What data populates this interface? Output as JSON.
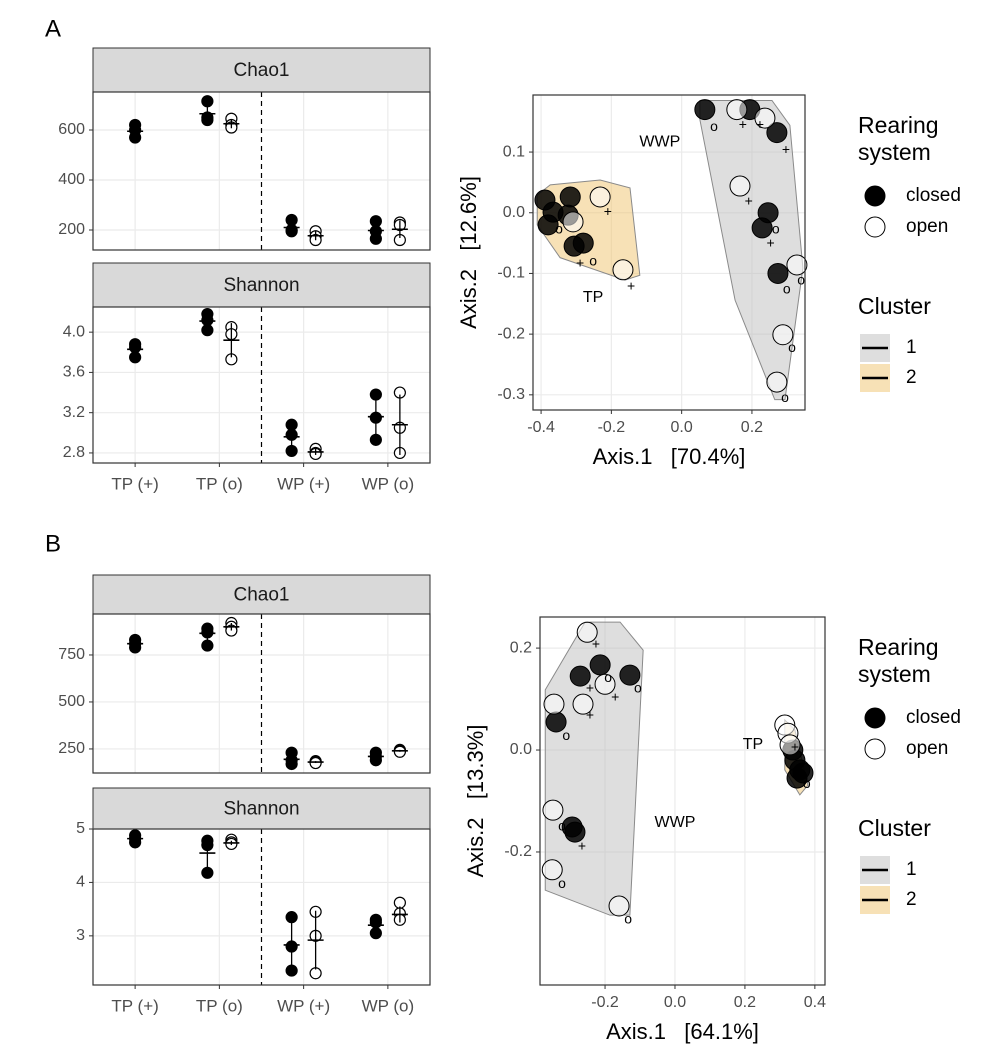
{
  "chart_data": [
    {
      "type": "dot",
      "panel_label": "A",
      "facet": "Chao1",
      "ylim": [
        120,
        752
      ],
      "yticks": [
        200,
        400,
        600
      ],
      "series": [
        {
          "color": "#000000",
          "filled": true,
          "values": [
            [
              620,
              600,
              570
            ],
            [
              715,
              650,
              640
            ],
            [
              240,
              200,
              195
            ],
            [
              235,
              195,
              165
            ]
          ],
          "mean": [
            595,
            665,
            210,
            198
          ],
          "sd": [
            25,
            40,
            25,
            35
          ]
        },
        {
          "color": "#000000",
          "filled": false,
          "values": [
            null,
            [
              645,
              620,
              610
            ],
            [
              195,
              175,
              160
            ],
            [
              230,
              220,
              160
            ]
          ],
          "mean": [
            null,
            625,
            177,
            203
          ],
          "sd": [
            null,
            18,
            18,
            35
          ]
        }
      ]
    },
    {
      "type": "dot",
      "facet": "Shannon",
      "categories": [
        "TP (+)",
        "TP (o)",
        "WP (+)",
        "WP (o)"
      ],
      "ylim": [
        2.7,
        4.25
      ],
      "yticks": [
        2.8,
        3.2,
        3.6,
        {
          "value": 4,
          "label": "4.0"
        }
      ],
      "series": [
        {
          "color": "#000000",
          "filled": true,
          "values": [
            [
              3.88,
              3.85,
              3.75
            ],
            [
              4.18,
              4.12,
              4.02
            ],
            [
              3.08,
              2.98,
              2.82
            ],
            [
              3.38,
              3.15,
              2.93
            ]
          ],
          "mean": [
            3.83,
            4.11,
            2.96,
            3.16
          ],
          "sd": [
            0.07,
            0.08,
            0.13,
            0.22
          ]
        },
        {
          "color": "#000000",
          "filled": false,
          "values": [
            null,
            [
              4.05,
              3.98,
              3.73
            ],
            [
              2.84,
              2.8,
              2.79
            ],
            [
              3.4,
              3.05,
              2.8
            ]
          ],
          "mean": [
            null,
            3.92,
            2.81,
            3.08
          ],
          "sd": [
            null,
            0.17,
            0.03,
            0.3
          ]
        }
      ]
    },
    {
      "type": "scatter",
      "xlabel": "Axis.1   [70.4%]",
      "ylabel": "Axis.2   [12.6%]",
      "xlim": [
        -0.423,
        0.351
      ],
      "ylim": [
        -0.325,
        0.194
      ],
      "xticks": [
        -0.4,
        -0.2,
        {
          "value": 0,
          "label": "0.0"
        },
        0.2
      ],
      "yticks": [
        0.1,
        {
          "value": 0,
          "label": "0.0"
        },
        -0.1,
        -0.2,
        -0.3
      ],
      "grid": true,
      "legend_title": "Rearing system",
      "cluster_title": "Cluster",
      "series": [
        {
          "name": "closed",
          "color": "#000000",
          "x": [
            -0.389,
            -0.366,
            -0.38,
            -0.317,
            -0.323,
            -0.306,
            -0.28,
            0.066,
            0.194,
            0.271,
            0.246,
            0.229,
            0.274
          ],
          "y": [
            0.021,
            0.001,
            -0.02,
            0.026,
            -0.004,
            -0.055,
            -0.05,
            0.17,
            0.17,
            0.132,
            0,
            -0.025,
            -0.1
          ]
        },
        {
          "name": "open",
          "color": "#000000",
          "x": [
            -0.232,
            -0.309,
            -0.167,
            0.157,
            0.237,
            0.166,
            0.288,
            0.328,
            0.271
          ],
          "y": [
            0.026,
            -0.015,
            -0.094,
            0.17,
            0.156,
            0.044,
            -0.201,
            -0.086,
            -0.279
          ]
        }
      ],
      "sample_labels": {
        "text": [
          "+",
          "+",
          "+",
          "+",
          "+",
          "+",
          "+",
          "+",
          "o",
          "o",
          "o",
          "o",
          "o",
          "o",
          "o",
          "o"
        ],
        "x": [
          -0.21,
          -0.289,
          -0.144,
          0.174,
          0.223,
          0.297,
          0.191,
          0.253,
          0.092,
          -0.349,
          -0.252,
          0.268,
          0.299,
          0.314,
          0.294,
          0.34
        ],
        "y": [
          0.001,
          -0.084,
          -0.122,
          0.144,
          0.144,
          0.103,
          0.018,
          -0.051,
          0.141,
          -0.028,
          -0.081,
          -0.028,
          -0.127,
          -0.223,
          -0.306,
          -0.112
        ]
      },
      "clusters": [
        {
          "name": "1",
          "color": "#bdbdbd",
          "points": [
            [
              0.052,
              0.185
            ],
            [
              0.257,
              0.185
            ],
            [
              0.308,
              0.144
            ],
            [
              0.345,
              -0.091
            ],
            [
              0.294,
              -0.308
            ],
            [
              0.265,
              -0.308
            ],
            [
              0.152,
              -0.144
            ],
            [
              0.052,
              0.153
            ]
          ]
        },
        {
          "name": "2",
          "color": "#f0c36d",
          "points": [
            [
              -0.411,
              0.029
            ],
            [
              -0.374,
              0.046
            ],
            [
              -0.232,
              0.054
            ],
            [
              -0.147,
              0.041
            ],
            [
              -0.119,
              -0.103
            ],
            [
              -0.161,
              -0.111
            ],
            [
              -0.346,
              -0.074
            ],
            [
              -0.411,
              -0.02
            ]
          ]
        }
      ],
      "annotations": [
        {
          "text": "WWP",
          "x": -0.062,
          "y": 0.116
        },
        {
          "text": "TP",
          "x": -0.252,
          "y": -0.14
        }
      ]
    },
    {
      "type": "dot",
      "panel_label": "B",
      "facet": "Chao1",
      "ylim": [
        122,
        968
      ],
      "yticks": [
        250,
        500,
        750
      ],
      "series": [
        {
          "color": "#000000",
          "filled": true,
          "values": [
            [
              830,
              810,
              790
            ],
            [
              890,
              870,
              800
            ],
            [
              230,
              190,
              170
            ],
            [
              230,
              210,
              190
            ]
          ],
          "mean": [
            810,
            865,
            195,
            210
          ],
          "sd": [
            20,
            45,
            30,
            20
          ]
        },
        {
          "color": "#000000",
          "filled": false,
          "values": [
            null,
            [
              920,
              900,
              880
            ],
            [
              185,
              180,
              175
            ],
            [
              245,
              240,
              235
            ]
          ],
          "mean": [
            null,
            900,
            180,
            240
          ],
          "sd": [
            null,
            20,
            5,
            5
          ]
        }
      ]
    },
    {
      "type": "dot",
      "facet": "Shannon",
      "categories": [
        "TP (+)",
        "TP (o)",
        "WP (+)",
        "WP (o)"
      ],
      "ylim": [
        2.08,
        5.0
      ],
      "yticks": [
        3,
        4,
        5
      ],
      "series": [
        {
          "color": "#000000",
          "filled": true,
          "values": [
            [
              4.88,
              4.82,
              4.75
            ],
            [
              4.78,
              4.7,
              4.18
            ],
            [
              3.35,
              2.8,
              2.35
            ],
            [
              3.3,
              3.25,
              3.05
            ]
          ],
          "mean": [
            4.82,
            4.55,
            2.83,
            3.2
          ],
          "sd": [
            0.06,
            0.3,
            0.5,
            0.12
          ]
        },
        {
          "color": "#000000",
          "filled": false,
          "values": [
            null,
            [
              4.8,
              4.75,
              4.72
            ],
            [
              3.45,
              3.0,
              2.3
            ],
            [
              3.62,
              3.42,
              3.3
            ]
          ],
          "mean": [
            null,
            4.74,
            2.92,
            3.4
          ],
          "sd": [
            null,
            0.04,
            0.55,
            0.15
          ]
        }
      ]
    },
    {
      "type": "scatter",
      "xlabel": "Axis.1   [64.1%]",
      "ylabel": "Axis.2   [13.3%]",
      "xlim": [
        -0.386,
        0.429
      ],
      "ylim": [
        -0.461,
        0.261
      ],
      "xticks": [
        -0.2,
        {
          "value": 0,
          "label": "0.0"
        },
        0.2,
        0.4
      ],
      "yticks": [
        0.2,
        {
          "value": 0,
          "label": "0.0"
        },
        -0.2
      ],
      "grid": true,
      "legend_title": "Rearing system",
      "cluster_title": "Cluster",
      "series": [
        {
          "name": "closed",
          "color": "#000000",
          "x": [
            -0.271,
            -0.214,
            -0.129,
            -0.34,
            -0.294,
            -0.286,
            0.343,
            0.357,
            0.349,
            0.366,
            0.337
          ],
          "y": [
            0.145,
            0.167,
            0.147,
            0.055,
            -0.151,
            -0.161,
            -0.02,
            -0.039,
            -0.055,
            -0.045,
            0
          ]
        },
        {
          "name": "open",
          "color": "#000000",
          "x": [
            -0.251,
            -0.346,
            -0.263,
            -0.2,
            -0.349,
            -0.351,
            -0.16,
            0.314,
            0.323,
            0.329
          ],
          "y": [
            0.231,
            0.09,
            0.09,
            0.129,
            -0.118,
            -0.235,
            -0.306,
            0.049,
            0.033,
            0.01
          ]
        }
      ],
      "sample_labels": {
        "text": [
          "+",
          "+",
          "+",
          "+",
          "+",
          "+",
          "o",
          "o",
          "o",
          "o",
          "o",
          "o",
          "o"
        ],
        "x": [
          -0.226,
          -0.243,
          -0.243,
          -0.171,
          -0.266,
          0.343,
          -0.191,
          -0.106,
          -0.311,
          -0.323,
          -0.323,
          -0.134,
          0.377
        ],
        "y": [
          0.206,
          0.12,
          0.067,
          0.102,
          -0.19,
          0.004,
          0.141,
          0.12,
          0.027,
          -0.151,
          -0.263,
          -0.333,
          -0.067
        ]
      },
      "clusters": [
        {
          "name": "1",
          "color": "#bdbdbd",
          "points": [
            [
              -0.371,
              0.118
            ],
            [
              -0.257,
              0.251
            ],
            [
              -0.157,
              0.251
            ],
            [
              -0.091,
              0.196
            ],
            [
              -0.129,
              -0.324
            ],
            [
              -0.186,
              -0.324
            ],
            [
              -0.371,
              -0.275
            ]
          ]
        },
        {
          "name": "2",
          "color": "#f0c36d",
          "points": [
            [
              0.314,
              0.059
            ],
            [
              0.343,
              0.039
            ],
            [
              0.38,
              -0.069
            ],
            [
              0.357,
              -0.088
            ],
            [
              0.314,
              -0.039
            ]
          ]
        }
      ],
      "annotations": [
        {
          "text": "WWP",
          "x": 0,
          "y": -0.143
        },
        {
          "text": "TP",
          "x": 0.223,
          "y": 0.01
        }
      ]
    }
  ]
}
